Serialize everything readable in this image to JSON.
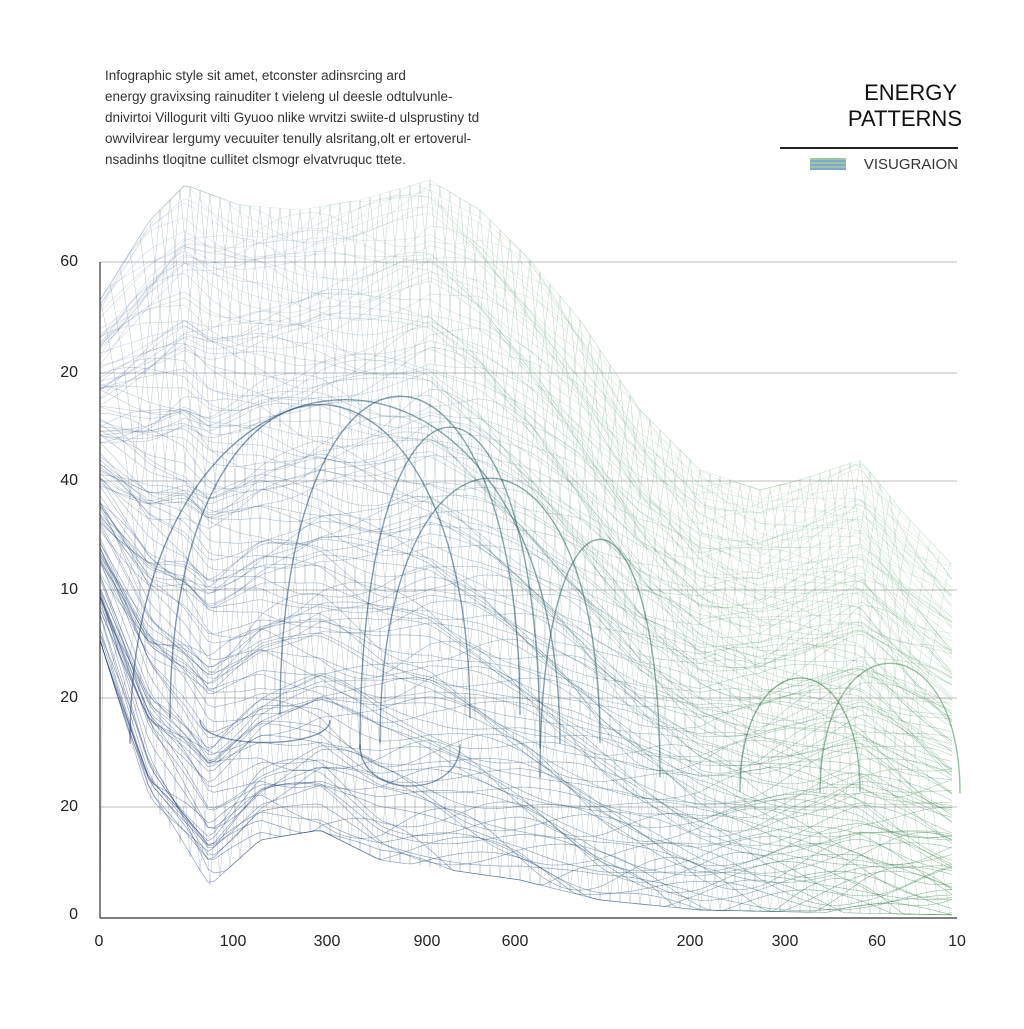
{
  "intro": {
    "lines": [
      "Infographic style sit amet, etconster adinsrcing ard",
      "energy gravixsing rainuditer t vieleng ul deesle odtulvunle-",
      "dnivirtoi Villogurit vilti Gyuoo nlike wrvitzi swiite-d ulsprustiny td",
      "owvilvirear lergumy vecuuiter tenully alsritang,olt er ertoverul-",
      "nsadinhs tloqitne cullitet clsmogr elvatvruquc ttete."
    ]
  },
  "header": {
    "title_lines": [
      "ENERGY",
      "PATTERNS"
    ],
    "subtitle": "VISUGRAION"
  },
  "axis": {
    "y_labels": [
      "60",
      "20",
      "40",
      "10",
      "20",
      "20",
      "0"
    ],
    "x_labels": [
      "0",
      "100",
      "300",
      "900",
      "600",
      "200",
      "300",
      "60",
      "10"
    ]
  }
}
